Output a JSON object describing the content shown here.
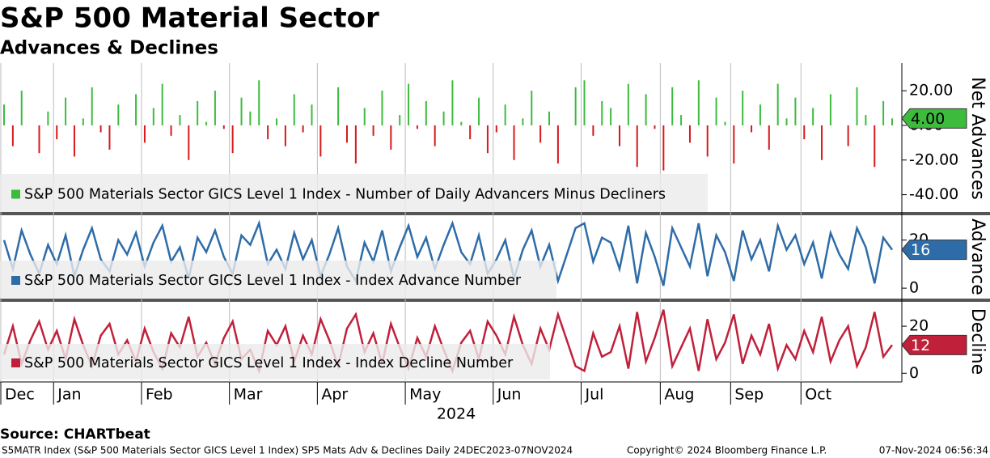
{
  "header": {
    "title": "S&P 500 Material Sector",
    "subtitle": "Advances & Declines"
  },
  "chart_data": [
    {
      "type": "bar",
      "axis_label": "Net Advances",
      "ylim": [
        -50,
        35
      ],
      "yticks": [
        {
          "value": 20,
          "label": "20.00"
        },
        {
          "value": 0,
          "label": "0.00"
        },
        {
          "value": -20,
          "label": "-20.00"
        },
        {
          "value": -40,
          "label": "-40.00"
        }
      ],
      "current": {
        "value": 4,
        "label": "4.00"
      },
      "series": [
        {
          "name": "S&P 500 Materials Sector GICS Level 1 Index - Number of Daily Advancers Minus Decliners",
          "color": "#3dbb3d",
          "negative_color": "#d7191c",
          "values": [
            12,
            -12,
            20,
            0,
            -16,
            8,
            -8,
            16,
            -18,
            4,
            22,
            -4,
            -14,
            12,
            0,
            18,
            -10,
            10,
            24,
            -6,
            6,
            -20,
            14,
            2,
            20,
            -2,
            -16,
            16,
            8,
            26,
            -8,
            4,
            -12,
            18,
            -4,
            12,
            -18,
            0,
            22,
            -10,
            -22,
            10,
            -6,
            20,
            -14,
            6,
            24,
            -2,
            14,
            -12,
            8,
            26,
            2,
            -8,
            16,
            -16,
            -4,
            12,
            -20,
            4,
            20,
            -10,
            8,
            -22,
            0,
            22,
            26,
            -6,
            14,
            10,
            -12,
            24,
            -24,
            18,
            -2,
            -26,
            22,
            6,
            -10,
            26,
            -18,
            16,
            2,
            -22,
            20,
            -4,
            12,
            -14,
            24,
            4,
            16,
            -8,
            10,
            -20,
            18,
            0,
            -12,
            22,
            6,
            -24,
            14,
            4
          ]
        }
      ]
    },
    {
      "type": "line",
      "axis_label": "Advance",
      "ylim": [
        -4,
        30
      ],
      "yticks": [
        0,
        20
      ],
      "current": 16,
      "series": [
        {
          "name": "S&P 500 Materials Sector GICS Level 1 Index - Index Advance Number",
          "color": "#2e6ca8",
          "values": [
            20,
            8,
            24,
            14,
            6,
            18,
            10,
            22,
            5,
            16,
            25,
            12,
            7,
            20,
            14,
            23,
            9,
            19,
            26,
            11,
            17,
            4,
            21,
            15,
            24,
            13,
            6,
            22,
            18,
            27,
            10,
            16,
            8,
            23,
            12,
            20,
            5,
            14,
            25,
            9,
            3,
            19,
            11,
            24,
            7,
            17,
            26,
            13,
            21,
            8,
            18,
            27,
            15,
            10,
            22,
            6,
            12,
            20,
            4,
            16,
            24,
            9,
            18,
            3,
            14,
            25,
            27,
            11,
            21,
            19,
            8,
            26,
            2,
            23,
            13,
            1,
            25,
            17,
            9,
            27,
            5,
            22,
            15,
            3,
            24,
            12,
            20,
            7,
            26,
            16,
            22,
            10,
            19,
            4,
            23,
            14,
            8,
            25,
            17,
            2,
            21,
            16
          ]
        }
      ]
    },
    {
      "type": "line",
      "axis_label": "Decline",
      "ylim": [
        -3,
        30
      ],
      "yticks": [
        0,
        20
      ],
      "current": 12,
      "series": [
        {
          "name": "S&P 500 Materials Sector GICS Level 1 Index - Index Decline Number",
          "color": "#c0203a",
          "values": [
            8,
            20,
            4,
            14,
            22,
            10,
            18,
            6,
            23,
            12,
            3,
            16,
            21,
            8,
            14,
            5,
            19,
            9,
            2,
            17,
            11,
            24,
            7,
            13,
            4,
            15,
            22,
            6,
            10,
            1,
            18,
            12,
            20,
            5,
            16,
            8,
            23,
            14,
            3,
            19,
            25,
            9,
            17,
            4,
            21,
            11,
            2,
            15,
            7,
            20,
            10,
            1,
            13,
            18,
            6,
            22,
            16,
            8,
            24,
            12,
            4,
            19,
            10,
            25,
            14,
            3,
            1,
            17,
            7,
            9,
            20,
            2,
            26,
            5,
            15,
            27,
            3,
            11,
            19,
            1,
            23,
            6,
            13,
            25,
            4,
            16,
            8,
            21,
            2,
            12,
            6,
            18,
            9,
            24,
            5,
            14,
            20,
            3,
            11,
            26,
            7,
            12
          ]
        }
      ],
      "xticks": [
        {
          "value": 0,
          "label": "Dec"
        },
        {
          "value": 6,
          "label": "Jan"
        },
        {
          "value": 16,
          "label": "Feb"
        },
        {
          "value": 26,
          "label": "Mar"
        },
        {
          "value": 36,
          "label": "Apr"
        },
        {
          "value": 46,
          "label": "May"
        },
        {
          "value": 56,
          "label": "Jun"
        },
        {
          "value": 66,
          "label": "Jul"
        },
        {
          "value": 75,
          "label": "Aug"
        },
        {
          "value": 83,
          "label": "Sep"
        },
        {
          "value": 91,
          "label": "Oct"
        }
      ],
      "year": "2024"
    }
  ],
  "footer": {
    "source": "Source: CHARTbeat",
    "description": "S5MATR Index (S&P 500 Materials Sector GICS Level 1 Index) SP5 Mats Adv & Declines  Daily 24DEC2023-07NOV2024",
    "copyright": "Copyright© 2024 Bloomberg Finance L.P.",
    "timestamp": "07-Nov-2024 06:56:34"
  }
}
